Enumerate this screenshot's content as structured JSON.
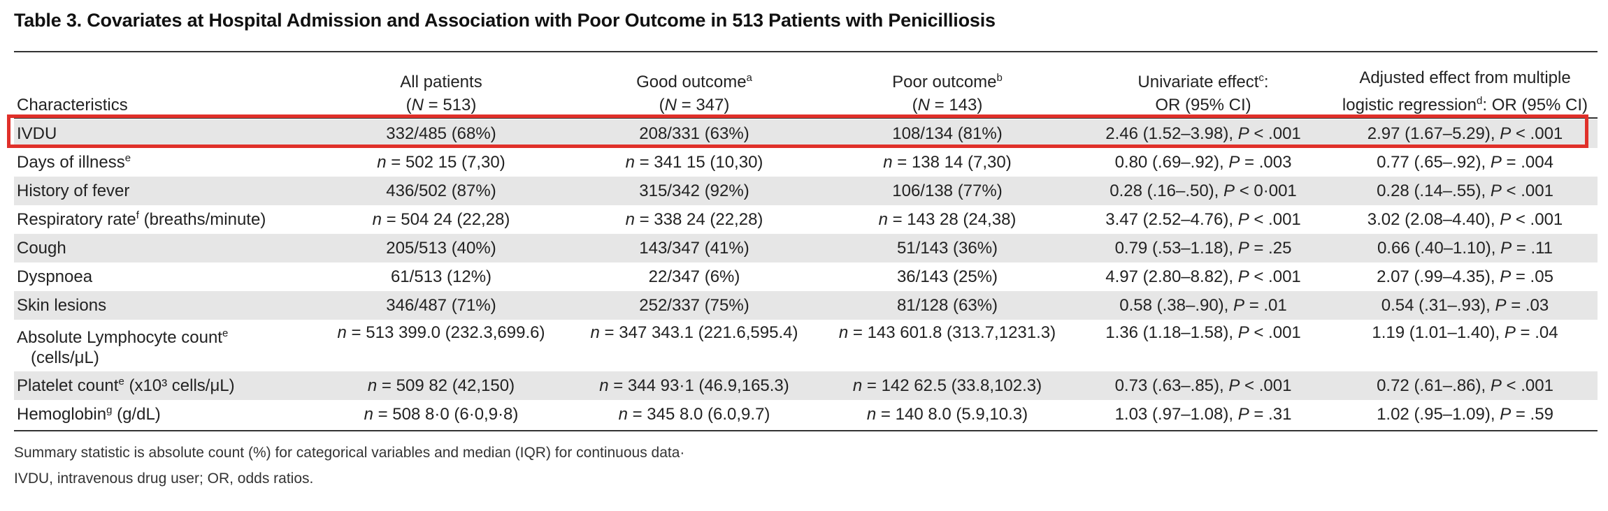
{
  "title": "Table 3.   Covariates at Hospital Admission and Association with Poor Outcome in 513 Patients with Penicilliosis",
  "headers": [
    {
      "line1": "",
      "line2": "Characteristics"
    },
    {
      "line1": "All patients",
      "line2": "(N = 513)"
    },
    {
      "line1": "Good outcome",
      "sup": "a",
      "line2": "(N = 347)"
    },
    {
      "line1": "Poor outcome",
      "sup": "b",
      "line2": "(N = 143)"
    },
    {
      "line1": "Univariate effect",
      "sup": "c",
      "line1_suffix": ":",
      "line2": "OR (95% CI)"
    },
    {
      "line1": "Adjusted effect from multiple",
      "line2": "logistic regression",
      "sup": "d",
      "line2_suffix": ": OR (95% CI)"
    }
  ],
  "rows": [
    {
      "label": "IVDU",
      "cells": [
        "332/485 (68%)",
        "208/331 (63%)",
        "108/134 (81%)",
        "2.46 (1.52–3.98), P < .001",
        "2.97 (1.67–5.29), P < .001"
      ],
      "highlighted": true
    },
    {
      "label": "Days of illness",
      "label_sup": "e",
      "cells": [
        "n = 502 15 (7,30)",
        "n = 341 15 (10,30)",
        "n = 138 14 (7,30)",
        "0.80 (.69–.92), P = .003",
        "0.77 (.65–.92), P = .004"
      ]
    },
    {
      "label": "History of fever",
      "cells": [
        "436/502 (87%)",
        "315/342 (92%)",
        "106/138 (77%)",
        "0.28 (.16–.50), P < 0·001",
        "0.28 (.14–.55), P < .001"
      ]
    },
    {
      "label": "Respiratory rate",
      "label_sup": "f",
      "label_suffix": " (breaths/minute)",
      "cells": [
        "n = 504 24 (22,28)",
        "n = 338 24 (22,28)",
        "n = 143 28 (24,38)",
        "3.47 (2.52–4.76), P < .001",
        "3.02 (2.08–4.40), P < .001"
      ]
    },
    {
      "label": "Cough",
      "cells": [
        "205/513 (40%)",
        "143/347 (41%)",
        "51/143 (36%)",
        "0.79 (.53–1.18), P = .25",
        "0.66 (.40–1.10), P = .11"
      ]
    },
    {
      "label": "Dyspnoea",
      "cells": [
        "61/513 (12%)",
        "22/347 (6%)",
        "36/143 (25%)",
        "4.97 (2.80–8.82), P < .001",
        "2.07 (.99–4.35), P = .05"
      ]
    },
    {
      "label": "Skin lesions",
      "cells": [
        "346/487 (71%)",
        "252/337 (75%)",
        "81/128 (63%)",
        "0.58 (.38–.90), P = .01",
        "0.54 (.31–.93), P = .03"
      ]
    },
    {
      "label": "Absolute Lymphocyte count",
      "label_sup": "e",
      "label_line2": "(cells/μL)",
      "cells": [
        "n = 513 399.0 (232.3,699.6)",
        "n = 347 343.1 (221.6,595.4)",
        "n = 143 601.8 (313.7,1231.3)",
        "1.36 (1.18–1.58), P < .001",
        "1.19 (1.01–1.40), P = .04"
      ]
    },
    {
      "label": "Platelet count",
      "label_sup": "e",
      "label_suffix": " (x10³ cells/μL)",
      "cells": [
        "n = 509 82 (42,150)",
        "n = 344 93·1 (46.9,165.3)",
        "n = 142 62.5 (33.8,102.3)",
        "0.73 (.63–.85), P < .001",
        "0.72 (.61–.86), P < .001"
      ]
    },
    {
      "label": "Hemoglobin",
      "label_sup": "g",
      "label_suffix": " (g/dL)",
      "cells": [
        "n = 508 8·0 (6·0,9·8)",
        "n = 345 8.0 (6.0,9.7)",
        "n = 140 8.0 (5.9,10.3)",
        "1.03 (.97–1.08), P = .31",
        "1.02 (.95–1.09), P = .59"
      ]
    }
  ],
  "notes": [
    "Summary statistic is absolute count (%) for categorical variables and median (IQR) for continuous data·",
    "IVDU, intravenous drug user; OR, odds ratios."
  ]
}
